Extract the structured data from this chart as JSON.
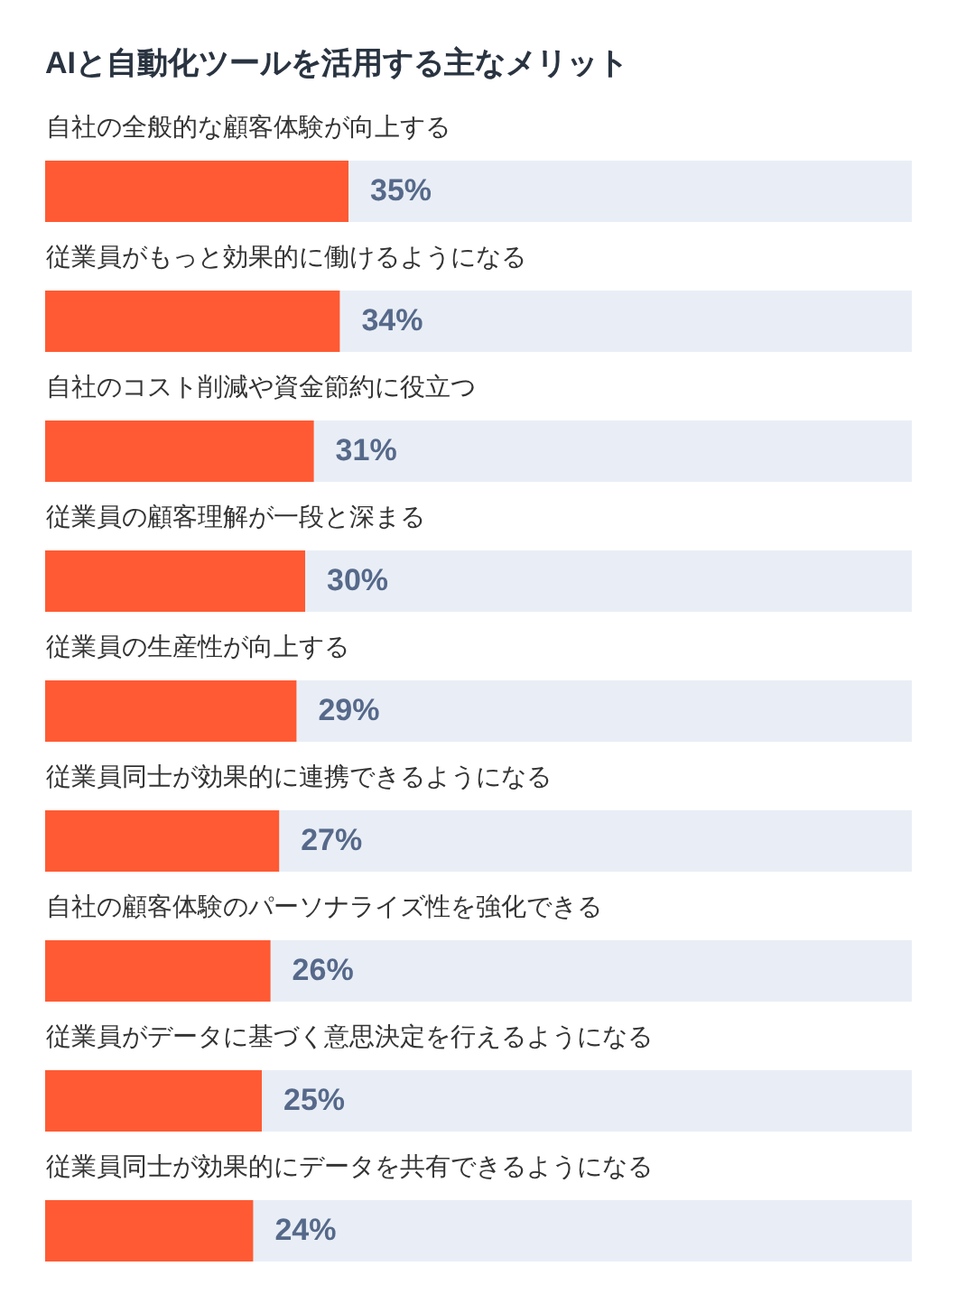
{
  "chart_data": {
    "type": "bar",
    "orientation": "horizontal",
    "title": "AIと自動化ツールを活用する主なメリット",
    "categories": [
      "自社の全般的な顧客体験が向上する",
      "従業員がもっと効果的に働けるようになる",
      "自社のコスト削減や資金節約に役立つ",
      "従業員の顧客理解が一段と深まる",
      "従業員の生産性が向上する",
      "従業員同士が効果的に連携できるようになる",
      "自社の顧客体験のパーソナライズ性を強化できる",
      "従業員がデータに基づく意思決定を行えるようになる",
      "従業員同士が効果的にデータを共有できるようになる"
    ],
    "values": [
      35,
      34,
      31,
      30,
      29,
      27,
      26,
      25,
      24
    ],
    "value_labels": [
      "35%",
      "34%",
      "31%",
      "30%",
      "29%",
      "27%",
      "26%",
      "25%",
      "24%"
    ],
    "color": "#ff5a33",
    "xlim": [
      0,
      100
    ],
    "tick_labels": "y",
    "grid": false
  }
}
